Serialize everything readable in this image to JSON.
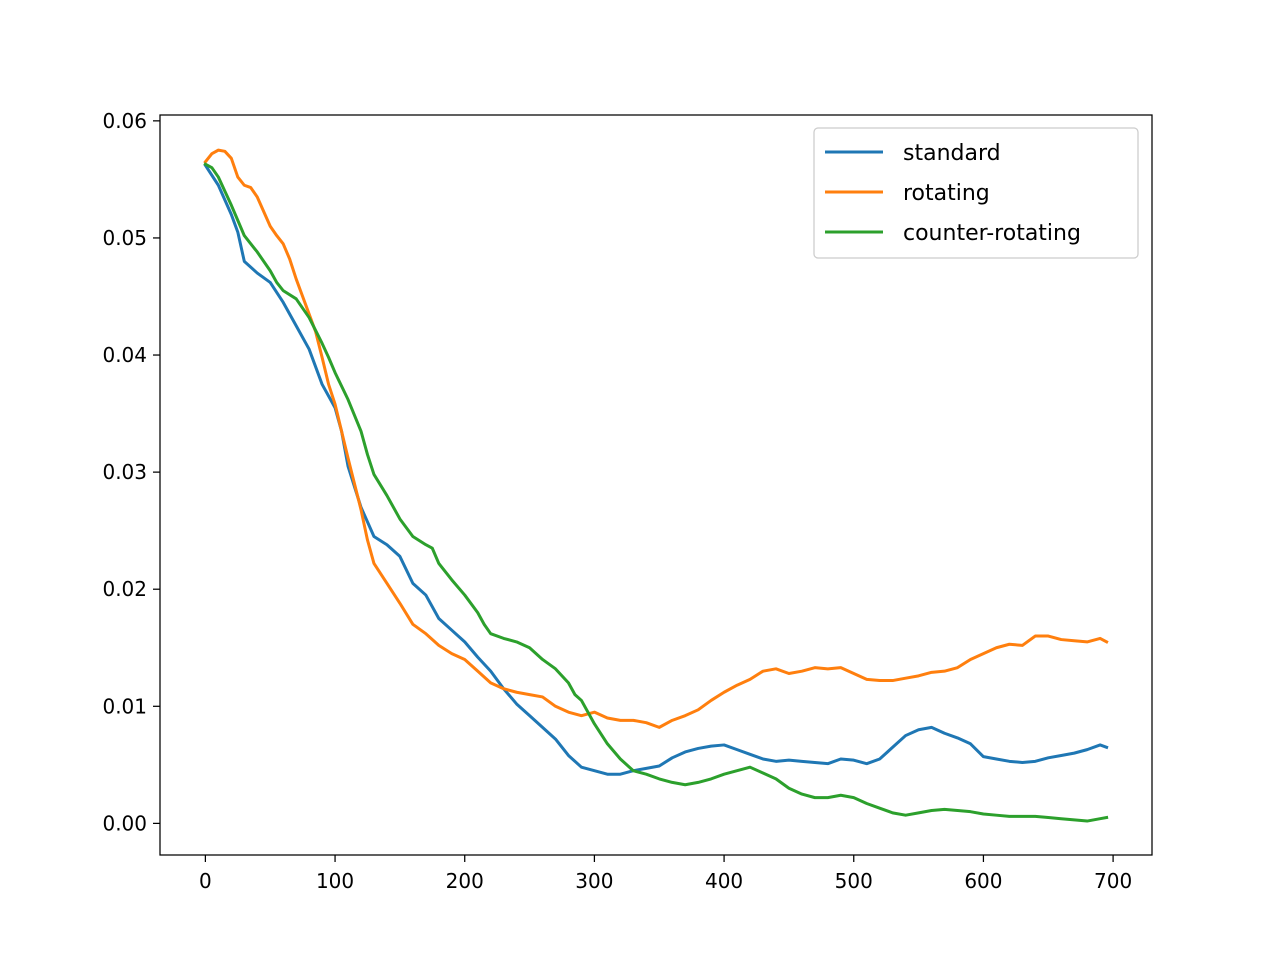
{
  "chart_data": {
    "type": "line",
    "title": "",
    "xlabel": "",
    "ylabel": "",
    "xlim": [
      -35,
      730
    ],
    "ylim": [
      -0.0027,
      0.0605
    ],
    "xticks": [
      0,
      100,
      200,
      300,
      400,
      500,
      600,
      700
    ],
    "xtick_labels": [
      "0",
      "100",
      "200",
      "300",
      "400",
      "500",
      "600",
      "700"
    ],
    "yticks": [
      0.0,
      0.01,
      0.02,
      0.03,
      0.04,
      0.05,
      0.06
    ],
    "ytick_labels": [
      "0.00",
      "0.01",
      "0.02",
      "0.03",
      "0.04",
      "0.05",
      "0.06"
    ],
    "grid": false,
    "legend_position": "top-right",
    "series": [
      {
        "name": "standard",
        "color": "#1f77b4",
        "x": [
          0,
          10,
          20,
          25,
          30,
          40,
          50,
          60,
          70,
          80,
          90,
          95,
          100,
          105,
          110,
          120,
          130,
          140,
          150,
          160,
          170,
          180,
          190,
          200,
          210,
          220,
          230,
          240,
          250,
          260,
          270,
          280,
          290,
          300,
          310,
          320,
          330,
          340,
          350,
          360,
          370,
          380,
          390,
          400,
          410,
          420,
          430,
          440,
          450,
          460,
          470,
          480,
          490,
          500,
          510,
          520,
          530,
          540,
          550,
          560,
          570,
          580,
          590,
          600,
          610,
          620,
          630,
          640,
          650,
          660,
          670,
          680,
          690,
          695
        ],
        "values": [
          0.0562,
          0.0545,
          0.052,
          0.0505,
          0.048,
          0.047,
          0.0462,
          0.0445,
          0.0425,
          0.0405,
          0.0375,
          0.0365,
          0.0355,
          0.0335,
          0.0305,
          0.027,
          0.0245,
          0.0238,
          0.0228,
          0.0205,
          0.0195,
          0.0175,
          0.0165,
          0.0155,
          0.0142,
          0.013,
          0.0115,
          0.0102,
          0.0092,
          0.0082,
          0.0072,
          0.0058,
          0.0048,
          0.0045,
          0.0042,
          0.0042,
          0.0045,
          0.0047,
          0.0049,
          0.0056,
          0.0061,
          0.0064,
          0.0066,
          0.0067,
          0.0063,
          0.0059,
          0.0055,
          0.0053,
          0.0054,
          0.0053,
          0.0052,
          0.0051,
          0.0055,
          0.0054,
          0.0051,
          0.0055,
          0.0065,
          0.0075,
          0.008,
          0.0082,
          0.0077,
          0.0073,
          0.0068,
          0.0057,
          0.0055,
          0.0053,
          0.0052,
          0.0053,
          0.0056,
          0.0058,
          0.006,
          0.0063,
          0.0067,
          0.0065
        ]
      },
      {
        "name": "rotating",
        "color": "#ff7f0e",
        "x": [
          0,
          5,
          10,
          15,
          20,
          25,
          30,
          35,
          40,
          50,
          55,
          60,
          65,
          70,
          75,
          80,
          85,
          90,
          95,
          100,
          105,
          110,
          120,
          125,
          130,
          140,
          150,
          160,
          170,
          180,
          190,
          200,
          210,
          220,
          230,
          240,
          250,
          260,
          270,
          280,
          290,
          300,
          310,
          320,
          330,
          340,
          350,
          360,
          370,
          380,
          390,
          400,
          410,
          420,
          430,
          440,
          450,
          460,
          470,
          480,
          490,
          500,
          510,
          520,
          530,
          540,
          550,
          560,
          570,
          580,
          590,
          600,
          610,
          620,
          630,
          640,
          650,
          660,
          670,
          680,
          690,
          695
        ],
        "values": [
          0.0565,
          0.0572,
          0.0575,
          0.0574,
          0.0568,
          0.0552,
          0.0545,
          0.0543,
          0.0535,
          0.051,
          0.0502,
          0.0495,
          0.0482,
          0.0465,
          0.045,
          0.0435,
          0.042,
          0.0398,
          0.0375,
          0.0358,
          0.0335,
          0.0312,
          0.0268,
          0.0242,
          0.0222,
          0.0205,
          0.0188,
          0.017,
          0.0162,
          0.0152,
          0.0145,
          0.014,
          0.013,
          0.012,
          0.0115,
          0.0112,
          0.011,
          0.0108,
          0.01,
          0.0095,
          0.0092,
          0.0095,
          0.009,
          0.0088,
          0.0088,
          0.0086,
          0.0082,
          0.0088,
          0.0092,
          0.0097,
          0.0105,
          0.0112,
          0.0118,
          0.0123,
          0.013,
          0.0132,
          0.0128,
          0.013,
          0.0133,
          0.0132,
          0.0133,
          0.0128,
          0.0123,
          0.0122,
          0.0122,
          0.0124,
          0.0126,
          0.0129,
          0.013,
          0.0133,
          0.014,
          0.0145,
          0.015,
          0.0153,
          0.0152,
          0.016,
          0.016,
          0.0157,
          0.0156,
          0.0155,
          0.0158,
          0.0155
        ]
      },
      {
        "name": "counter-rotating",
        "color": "#2ca02c",
        "x": [
          0,
          5,
          10,
          15,
          20,
          25,
          30,
          35,
          40,
          50,
          55,
          60,
          70,
          80,
          90,
          95,
          100,
          110,
          120,
          125,
          130,
          140,
          150,
          160,
          170,
          175,
          180,
          190,
          200,
          210,
          215,
          220,
          230,
          240,
          250,
          260,
          270,
          280,
          285,
          290,
          300,
          310,
          320,
          330,
          340,
          350,
          360,
          370,
          380,
          390,
          400,
          410,
          420,
          430,
          440,
          450,
          460,
          470,
          480,
          490,
          500,
          510,
          520,
          530,
          540,
          550,
          560,
          570,
          580,
          590,
          600,
          610,
          620,
          630,
          640,
          650,
          660,
          670,
          680,
          690,
          695
        ],
        "values": [
          0.0563,
          0.056,
          0.0552,
          0.054,
          0.0528,
          0.0515,
          0.0502,
          0.0495,
          0.0488,
          0.0472,
          0.0462,
          0.0455,
          0.0448,
          0.0432,
          0.041,
          0.0398,
          0.0385,
          0.0362,
          0.0335,
          0.0315,
          0.0298,
          0.028,
          0.026,
          0.0245,
          0.0238,
          0.0235,
          0.0222,
          0.0208,
          0.0195,
          0.018,
          0.017,
          0.0162,
          0.0158,
          0.0155,
          0.015,
          0.014,
          0.0132,
          0.012,
          0.011,
          0.0105,
          0.0085,
          0.0068,
          0.0055,
          0.0045,
          0.0042,
          0.0038,
          0.0035,
          0.0033,
          0.0035,
          0.0038,
          0.0042,
          0.0045,
          0.0048,
          0.0043,
          0.0038,
          0.003,
          0.0025,
          0.0022,
          0.0022,
          0.0024,
          0.0022,
          0.0017,
          0.0013,
          0.0009,
          0.0007,
          0.0009,
          0.0011,
          0.0012,
          0.0011,
          0.001,
          0.0008,
          0.0007,
          0.0006,
          0.0006,
          0.0006,
          0.0005,
          0.0004,
          0.0003,
          0.0002,
          0.0004,
          0.0005
        ]
      }
    ]
  }
}
